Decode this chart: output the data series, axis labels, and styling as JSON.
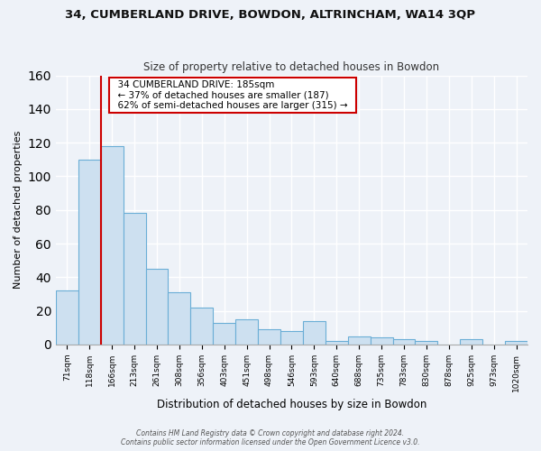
{
  "title1": "34, CUMBERLAND DRIVE, BOWDON, ALTRINCHAM, WA14 3QP",
  "title2": "Size of property relative to detached houses in Bowdon",
  "xlabel": "Distribution of detached houses by size in Bowdon",
  "ylabel": "Number of detached properties",
  "bar_labels": [
    "71sqm",
    "118sqm",
    "166sqm",
    "213sqm",
    "261sqm",
    "308sqm",
    "356sqm",
    "403sqm",
    "451sqm",
    "498sqm",
    "546sqm",
    "593sqm",
    "640sqm",
    "688sqm",
    "735sqm",
    "783sqm",
    "830sqm",
    "878sqm",
    "925sqm",
    "973sqm",
    "1020sqm"
  ],
  "bar_values": [
    32,
    110,
    118,
    78,
    45,
    31,
    22,
    13,
    15,
    9,
    8,
    14,
    2,
    5,
    4,
    3,
    2,
    0,
    3,
    0,
    2
  ],
  "bar_color": "#cde0f0",
  "bar_edge_color": "#6baed6",
  "vline_color": "#cc0000",
  "annotation_title": "34 CUMBERLAND DRIVE: 185sqm",
  "annotation_line1": "← 37% of detached houses are smaller (187)",
  "annotation_line2": "62% of semi-detached houses are larger (315) →",
  "annotation_box_color": "white",
  "annotation_box_edge": "#cc0000",
  "ylim": [
    0,
    160
  ],
  "yticks": [
    0,
    20,
    40,
    60,
    80,
    100,
    120,
    140,
    160
  ],
  "background_color": "#eef2f8",
  "grid_color": "#ffffff",
  "footer1": "Contains HM Land Registry data © Crown copyright and database right 2024.",
  "footer2": "Contains public sector information licensed under the Open Government Licence v3.0."
}
